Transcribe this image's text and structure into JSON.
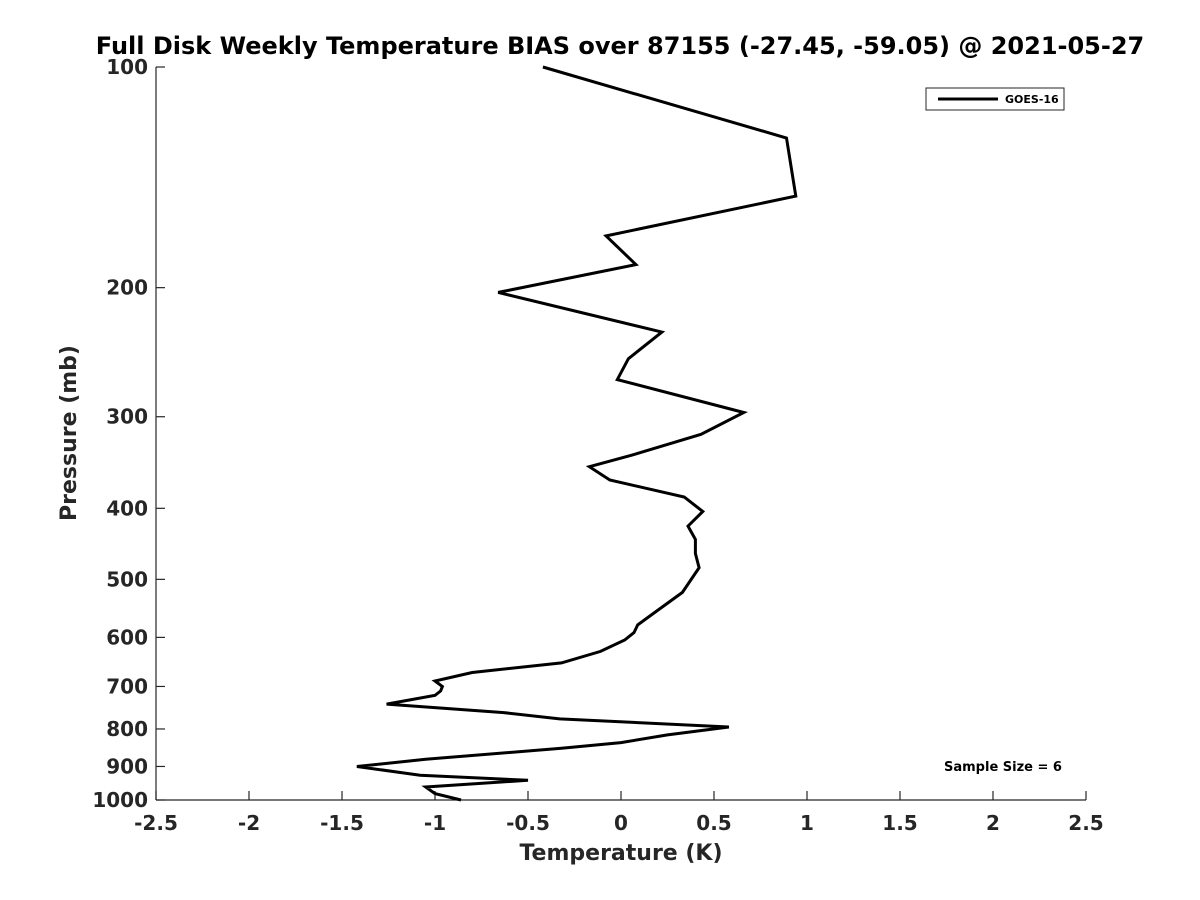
{
  "chart_data": {
    "type": "line",
    "title": "Full Disk Weekly Temperature BIAS over 87155 (-27.45, -59.05) @ 2021-05-27",
    "xlabel": "Temperature (K)",
    "ylabel": "Pressure (mb)",
    "xlim": [
      -2.5,
      2.5
    ],
    "ylim": [
      1000,
      100
    ],
    "yscale": "log",
    "yreverse": true,
    "grid": false,
    "xticks": [
      "-2.5",
      "-2",
      "-1.5",
      "-1",
      "-0.5",
      "0",
      "0.5",
      "1",
      "1.5",
      "2",
      "2.5"
    ],
    "yticks": [
      "100",
      "200",
      "300",
      "400",
      "500",
      "600",
      "700",
      "800",
      "900",
      "1000"
    ],
    "legend_position": "top-right",
    "series": [
      {
        "name": "GOES-16",
        "color": "#000000",
        "points": [
          {
            "x": -0.42,
            "p": 100
          },
          {
            "x": 0.89,
            "p": 125
          },
          {
            "x": 0.94,
            "p": 150
          },
          {
            "x": -0.08,
            "p": 170
          },
          {
            "x": 0.08,
            "p": 186
          },
          {
            "x": -0.66,
            "p": 203
          },
          {
            "x": 0.22,
            "p": 230
          },
          {
            "x": 0.04,
            "p": 250
          },
          {
            "x": -0.02,
            "p": 267
          },
          {
            "x": 0.66,
            "p": 296
          },
          {
            "x": 0.43,
            "p": 317
          },
          {
            "x": 0.05,
            "p": 339
          },
          {
            "x": -0.17,
            "p": 351
          },
          {
            "x": -0.06,
            "p": 366
          },
          {
            "x": 0.34,
            "p": 386
          },
          {
            "x": 0.44,
            "p": 404
          },
          {
            "x": 0.36,
            "p": 423
          },
          {
            "x": 0.4,
            "p": 441
          },
          {
            "x": 0.4,
            "p": 461
          },
          {
            "x": 0.42,
            "p": 482
          },
          {
            "x": 0.33,
            "p": 521
          },
          {
            "x": 0.18,
            "p": 555
          },
          {
            "x": 0.09,
            "p": 577
          },
          {
            "x": 0.07,
            "p": 591
          },
          {
            "x": 0.02,
            "p": 605
          },
          {
            "x": -0.11,
            "p": 627
          },
          {
            "x": -0.32,
            "p": 650
          },
          {
            "x": -0.8,
            "p": 670
          },
          {
            "x": -1.0,
            "p": 688
          },
          {
            "x": -0.96,
            "p": 700
          },
          {
            "x": -0.97,
            "p": 710
          },
          {
            "x": -1.0,
            "p": 720
          },
          {
            "x": -1.26,
            "p": 740
          },
          {
            "x": -0.63,
            "p": 760
          },
          {
            "x": -0.33,
            "p": 775
          },
          {
            "x": 0.58,
            "p": 795
          },
          {
            "x": 0.25,
            "p": 815
          },
          {
            "x": 0.0,
            "p": 835
          },
          {
            "x": -0.32,
            "p": 850
          },
          {
            "x": -1.05,
            "p": 880
          },
          {
            "x": -1.42,
            "p": 900
          },
          {
            "x": -1.08,
            "p": 925
          },
          {
            "x": -0.5,
            "p": 940
          },
          {
            "x": -1.05,
            "p": 960
          },
          {
            "x": -1.0,
            "p": 980
          },
          {
            "x": -0.86,
            "p": 1000
          }
        ]
      }
    ],
    "annotation": "Sample Size = 6"
  }
}
